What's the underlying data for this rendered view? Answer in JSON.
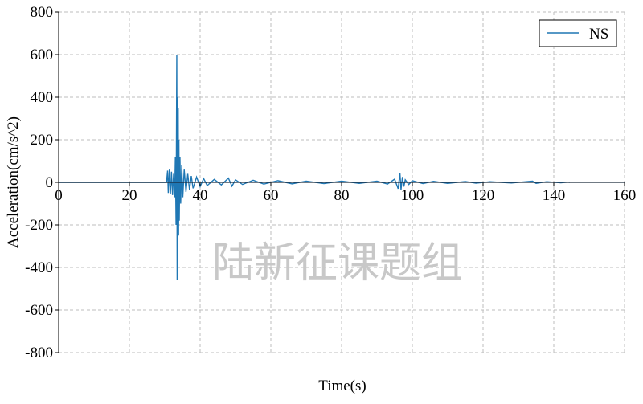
{
  "watermark": "陆新征课题组",
  "chart_data": {
    "type": "line",
    "title": "",
    "xlabel": "Time(s)",
    "ylabel": "Acceleration(cm/s^2)",
    "xlim": [
      0,
      160
    ],
    "ylim": [
      -800,
      800
    ],
    "xticks": [
      0,
      20,
      40,
      60,
      80,
      100,
      120,
      140,
      160
    ],
    "yticks": [
      -800,
      -600,
      -400,
      -200,
      0,
      200,
      400,
      600,
      800
    ],
    "grid": true,
    "legend_position": "top-right",
    "series": [
      {
        "name": "NS",
        "color": "#1f77b4",
        "points": [
          [
            0,
            0
          ],
          [
            30.5,
            0
          ],
          [
            30.8,
            55
          ],
          [
            31.0,
            -50
          ],
          [
            31.3,
            60
          ],
          [
            31.6,
            -55
          ],
          [
            31.9,
            50
          ],
          [
            32.2,
            -60
          ],
          [
            32.5,
            40
          ],
          [
            32.8,
            -70
          ],
          [
            33.0,
            120
          ],
          [
            33.2,
            -200
          ],
          [
            33.4,
            600
          ],
          [
            33.5,
            -460
          ],
          [
            33.6,
            400
          ],
          [
            33.7,
            -300
          ],
          [
            33.8,
            350
          ],
          [
            33.9,
            -250
          ],
          [
            34.0,
            200
          ],
          [
            34.1,
            -180
          ],
          [
            34.3,
            120
          ],
          [
            34.5,
            -100
          ],
          [
            34.8,
            80
          ],
          [
            35.1,
            -70
          ],
          [
            35.5,
            60
          ],
          [
            36,
            -45
          ],
          [
            36.5,
            40
          ],
          [
            37,
            -35
          ],
          [
            37.5,
            30
          ],
          [
            38,
            -28
          ],
          [
            39,
            25
          ],
          [
            40,
            -20
          ],
          [
            41,
            18
          ],
          [
            42,
            -15
          ],
          [
            44,
            14
          ],
          [
            46,
            -12
          ],
          [
            48,
            20
          ],
          [
            49,
            -18
          ],
          [
            50,
            12
          ],
          [
            52,
            -10
          ],
          [
            55,
            10
          ],
          [
            58,
            -8
          ],
          [
            62,
            8
          ],
          [
            66,
            -7
          ],
          [
            70,
            6
          ],
          [
            75,
            -6
          ],
          [
            80,
            6
          ],
          [
            85,
            -5
          ],
          [
            90,
            6
          ],
          [
            93,
            -8
          ],
          [
            95,
            15
          ],
          [
            96,
            -30
          ],
          [
            96.5,
            45
          ],
          [
            96.8,
            -35
          ],
          [
            97.2,
            25
          ],
          [
            97.6,
            -20
          ],
          [
            98,
            12
          ],
          [
            99,
            -10
          ],
          [
            100,
            8
          ],
          [
            103,
            -6
          ],
          [
            106,
            5
          ],
          [
            110,
            -5
          ],
          [
            115,
            4
          ],
          [
            118,
            -4
          ],
          [
            122,
            3
          ],
          [
            128,
            -3
          ],
          [
            134,
            6
          ],
          [
            135,
            -5
          ],
          [
            138,
            3
          ],
          [
            142,
            -2
          ],
          [
            144,
            1
          ],
          [
            144.5,
            0
          ]
        ]
      }
    ]
  }
}
